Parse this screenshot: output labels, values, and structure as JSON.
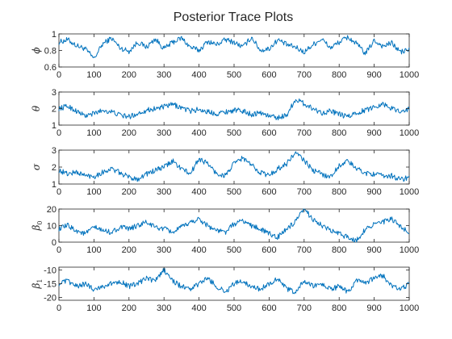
{
  "chart_data": {
    "type": "line",
    "title": "Posterior Trace Plots",
    "line_color": "#0072BD",
    "xlim": [
      0,
      1000
    ],
    "x_ticks": [
      0,
      100,
      200,
      300,
      400,
      500,
      600,
      700,
      800,
      900,
      1000
    ],
    "subplots": [
      {
        "ylabel": "ϕ",
        "ylabel_sub": "",
        "ylim": [
          0.6,
          1
        ],
        "y_ticks": [
          "1",
          "0.8",
          "0.6"
        ],
        "y_tick_values": [
          1,
          0.8,
          0.6
        ],
        "sample_x": [
          0,
          25,
          50,
          75,
          100,
          125,
          150,
          175,
          200,
          225,
          250,
          275,
          300,
          325,
          350,
          375,
          400,
          425,
          450,
          475,
          500,
          525,
          550,
          575,
          600,
          625,
          650,
          675,
          700,
          725,
          750,
          775,
          800,
          825,
          850,
          875,
          900,
          925,
          950,
          975,
          1000
        ],
        "values": [
          0.9,
          0.93,
          0.86,
          0.82,
          0.7,
          0.88,
          0.95,
          0.83,
          0.79,
          0.9,
          0.84,
          0.94,
          0.82,
          0.9,
          0.95,
          0.84,
          0.8,
          0.91,
          0.87,
          0.93,
          0.9,
          0.84,
          0.96,
          0.8,
          0.82,
          0.93,
          0.87,
          0.84,
          0.78,
          0.87,
          0.94,
          0.83,
          0.9,
          0.96,
          0.88,
          0.76,
          0.92,
          0.85,
          0.89,
          0.78,
          0.81
        ]
      },
      {
        "ylabel": "θ",
        "ylabel_sub": "",
        "ylim": [
          1,
          3
        ],
        "y_ticks": [
          "3",
          "2",
          "1"
        ],
        "y_tick_values": [
          3,
          2,
          1
        ],
        "sample_x": [
          0,
          25,
          50,
          75,
          100,
          125,
          150,
          175,
          200,
          225,
          250,
          275,
          300,
          325,
          350,
          375,
          400,
          425,
          450,
          475,
          500,
          525,
          550,
          575,
          600,
          625,
          650,
          675,
          700,
          725,
          750,
          775,
          800,
          825,
          850,
          875,
          900,
          925,
          950,
          975,
          1000
        ],
        "values": [
          2.0,
          2.15,
          1.85,
          1.55,
          1.7,
          1.9,
          1.8,
          1.6,
          1.5,
          1.7,
          1.9,
          2.0,
          2.1,
          2.25,
          2.05,
          1.85,
          1.95,
          1.8,
          1.7,
          1.8,
          1.9,
          1.85,
          1.65,
          1.75,
          1.55,
          1.45,
          1.6,
          2.55,
          2.3,
          2.0,
          1.75,
          1.85,
          1.65,
          1.5,
          1.75,
          1.9,
          2.1,
          2.3,
          2.0,
          1.85,
          1.95
        ]
      },
      {
        "ylabel": "σ",
        "ylabel_sub": "",
        "ylim": [
          1,
          3
        ],
        "y_ticks": [
          "3",
          "2",
          "1"
        ],
        "y_tick_values": [
          3,
          2,
          1
        ],
        "sample_x": [
          0,
          25,
          50,
          75,
          100,
          125,
          150,
          175,
          200,
          225,
          250,
          275,
          300,
          325,
          350,
          375,
          400,
          425,
          450,
          475,
          500,
          525,
          550,
          575,
          600,
          625,
          650,
          675,
          700,
          725,
          750,
          775,
          800,
          825,
          850,
          875,
          900,
          925,
          950,
          975,
          1000
        ],
        "values": [
          1.8,
          1.6,
          1.7,
          1.5,
          1.45,
          1.7,
          1.9,
          1.65,
          1.4,
          1.3,
          1.6,
          1.8,
          2.0,
          2.35,
          1.9,
          1.6,
          2.5,
          2.2,
          1.6,
          1.5,
          2.2,
          2.55,
          2.1,
          1.7,
          1.5,
          1.9,
          2.2,
          2.85,
          2.4,
          1.8,
          1.6,
          1.4,
          2.1,
          2.35,
          1.9,
          1.65,
          1.6,
          1.45,
          1.5,
          1.25,
          1.4
        ]
      },
      {
        "ylabel": "β",
        "ylabel_sub": "0",
        "ylim": [
          0,
          20
        ],
        "y_ticks": [
          "20",
          "10",
          "0"
        ],
        "y_tick_values": [
          20,
          10,
          0
        ],
        "sample_x": [
          0,
          25,
          50,
          75,
          100,
          125,
          150,
          175,
          200,
          225,
          250,
          275,
          300,
          325,
          350,
          375,
          400,
          425,
          450,
          475,
          500,
          525,
          550,
          575,
          600,
          625,
          650,
          675,
          700,
          725,
          750,
          775,
          800,
          825,
          850,
          875,
          900,
          925,
          950,
          975,
          1000
        ],
        "values": [
          8,
          10,
          7,
          5,
          9,
          7,
          6,
          9,
          8,
          10,
          12,
          9,
          8,
          6,
          9,
          12,
          14,
          10,
          7,
          6,
          11,
          13,
          10,
          8,
          5,
          3,
          8,
          12,
          20,
          14,
          10,
          7,
          5,
          3,
          1,
          8,
          11,
          12,
          14,
          9,
          6
        ]
      },
      {
        "ylabel": "β",
        "ylabel_sub": "1",
        "ylim": [
          -21,
          -9
        ],
        "y_ticks": [
          "-10",
          "-15",
          "-20"
        ],
        "y_tick_values": [
          -10,
          -15,
          -20
        ],
        "sample_x": [
          0,
          25,
          50,
          75,
          100,
          125,
          150,
          175,
          200,
          225,
          250,
          275,
          300,
          325,
          350,
          375,
          400,
          425,
          450,
          475,
          500,
          525,
          550,
          575,
          600,
          625,
          650,
          675,
          700,
          725,
          750,
          775,
          800,
          825,
          850,
          875,
          900,
          925,
          950,
          975,
          1000
        ],
        "values": [
          -15,
          -14,
          -16,
          -15,
          -17,
          -16,
          -15,
          -14,
          -16,
          -15,
          -13,
          -14,
          -10,
          -14,
          -16,
          -17,
          -15,
          -13,
          -16,
          -18,
          -15,
          -14,
          -16,
          -17,
          -15,
          -13,
          -17,
          -18,
          -14,
          -16,
          -15,
          -17,
          -16,
          -18,
          -14,
          -15,
          -13,
          -12,
          -16,
          -17,
          -15
        ]
      }
    ]
  }
}
